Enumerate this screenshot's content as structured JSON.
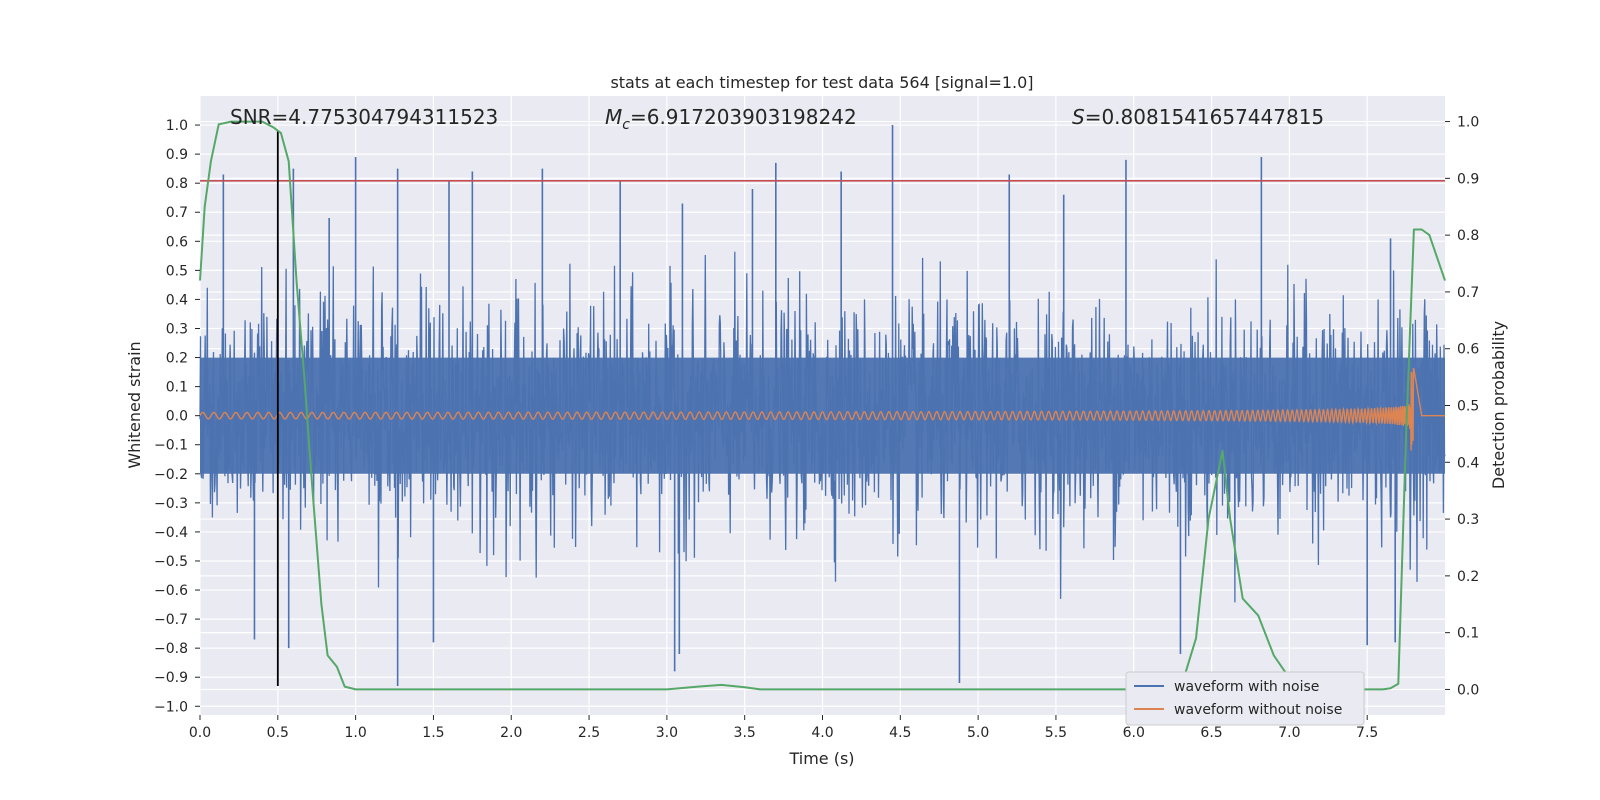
{
  "chart_data": {
    "type": "line",
    "title": "stats at each timestep for test data 564 [signal=1.0]",
    "xlabel": "Time (s)",
    "ylabel_left": "Whitened strain",
    "ylabel_right": "Detection probability",
    "xlim": [
      0.0,
      8.0
    ],
    "ylim_left": [
      -1.03,
      1.1
    ],
    "ylim_right": [
      -0.045,
      1.045
    ],
    "x_ticks": [
      "0.0",
      "0.5",
      "1.0",
      "1.5",
      "2.0",
      "2.5",
      "3.0",
      "3.5",
      "4.0",
      "4.5",
      "5.0",
      "5.5",
      "6.0",
      "6.5",
      "7.0",
      "7.5"
    ],
    "y_left_ticks": [
      "1.0",
      "0.9",
      "0.8",
      "0.7",
      "0.6",
      "0.5",
      "0.4",
      "0.3",
      "0.2",
      "0.1",
      "0.0",
      "−0.1",
      "−0.2",
      "−0.3",
      "−0.4",
      "−0.5",
      "−0.6",
      "−0.7",
      "−0.8",
      "−0.9",
      "−1.0"
    ],
    "y_right_ticks": [
      "1.0",
      "0.9",
      "0.8",
      "0.7",
      "0.6",
      "0.5",
      "0.4",
      "0.3",
      "0.2",
      "0.1",
      "0.0"
    ],
    "annotations": {
      "snr": "SNR=4.775304794311523",
      "mc_symbol": "M",
      "mc_sub": "c",
      "mc_value": "=6.917203903198242",
      "s_symbol": "S",
      "s_value": "=0.8081541657447815"
    },
    "threshold_line": {
      "value": 0.808,
      "axis": "left",
      "color": "#c44e52"
    },
    "marker_line": {
      "x": 0.5,
      "y_range": [
        -0.93,
        0.98
      ],
      "color": "#000000"
    },
    "grid": true,
    "legend": {
      "placement": "lower-right",
      "entries": [
        {
          "label": "waveform with noise",
          "color": "#4c72b0"
        },
        {
          "label": "waveform without noise",
          "color": "#dd8452"
        }
      ]
    },
    "series": [
      {
        "name": "waveform with noise",
        "axis": "left",
        "color": "#4c72b0",
        "kind": "noise",
        "spikes_high": [
          [
            0.15,
            0.83
          ],
          [
            0.5,
            0.6
          ],
          [
            0.6,
            0.85
          ],
          [
            0.83,
            0.68
          ],
          [
            1.0,
            0.89
          ],
          [
            1.27,
            0.85
          ],
          [
            1.6,
            0.81
          ],
          [
            1.75,
            0.84
          ],
          [
            2.2,
            0.85
          ],
          [
            2.7,
            0.81
          ],
          [
            3.1,
            0.73
          ],
          [
            3.55,
            0.78
          ],
          [
            3.7,
            0.87
          ],
          [
            4.12,
            0.84
          ],
          [
            4.45,
            1.0
          ],
          [
            5.2,
            0.83
          ],
          [
            5.55,
            0.76
          ],
          [
            5.95,
            0.88
          ],
          [
            6.82,
            0.89
          ],
          [
            7.65,
            0.61
          ]
        ],
        "spikes_low": [
          [
            0.35,
            -0.77
          ],
          [
            0.57,
            -0.8
          ],
          [
            1.27,
            -0.93
          ],
          [
            1.5,
            -0.78
          ],
          [
            3.05,
            -0.88
          ],
          [
            3.08,
            -0.82
          ],
          [
            4.88,
            -0.92
          ],
          [
            6.3,
            -0.82
          ],
          [
            7.5,
            -0.79
          ],
          [
            7.68,
            -0.78
          ]
        ]
      },
      {
        "name": "waveform without noise",
        "axis": "left",
        "color": "#dd8452",
        "kind": "chirp",
        "merger_time": 7.8
      },
      {
        "name": "",
        "axis": "right",
        "color": "#55a868",
        "kind": "line",
        "x": [
          0.0,
          0.03,
          0.07,
          0.12,
          0.2,
          0.3,
          0.4,
          0.47,
          0.52,
          0.57,
          0.62,
          0.67,
          0.72,
          0.78,
          0.82,
          0.88,
          0.93,
          1.0,
          1.2,
          1.5,
          2.0,
          2.5,
          3.0,
          3.2,
          3.35,
          3.5,
          3.6,
          4.0,
          5.0,
          5.5,
          6.0,
          6.3,
          6.4,
          6.48,
          6.57,
          6.62,
          6.7,
          6.8,
          6.9,
          7.0,
          7.2,
          7.4,
          7.6,
          7.65,
          7.7,
          7.75,
          7.8,
          7.85,
          7.9,
          8.0
        ],
        "y": [
          0.72,
          0.85,
          0.93,
          0.995,
          1.0,
          1.0,
          1.0,
          0.99,
          0.98,
          0.93,
          0.72,
          0.55,
          0.36,
          0.15,
          0.06,
          0.04,
          0.005,
          0.0,
          0.0,
          0.0,
          0.0,
          0.0,
          0.0,
          0.005,
          0.008,
          0.004,
          0.0,
          0.0,
          0.0,
          0.0,
          0.0,
          0.0,
          0.09,
          0.3,
          0.42,
          0.3,
          0.16,
          0.13,
          0.06,
          0.02,
          0.0,
          0.0,
          0.0,
          0.002,
          0.01,
          0.45,
          0.81,
          0.81,
          0.8,
          0.72
        ]
      }
    ]
  }
}
